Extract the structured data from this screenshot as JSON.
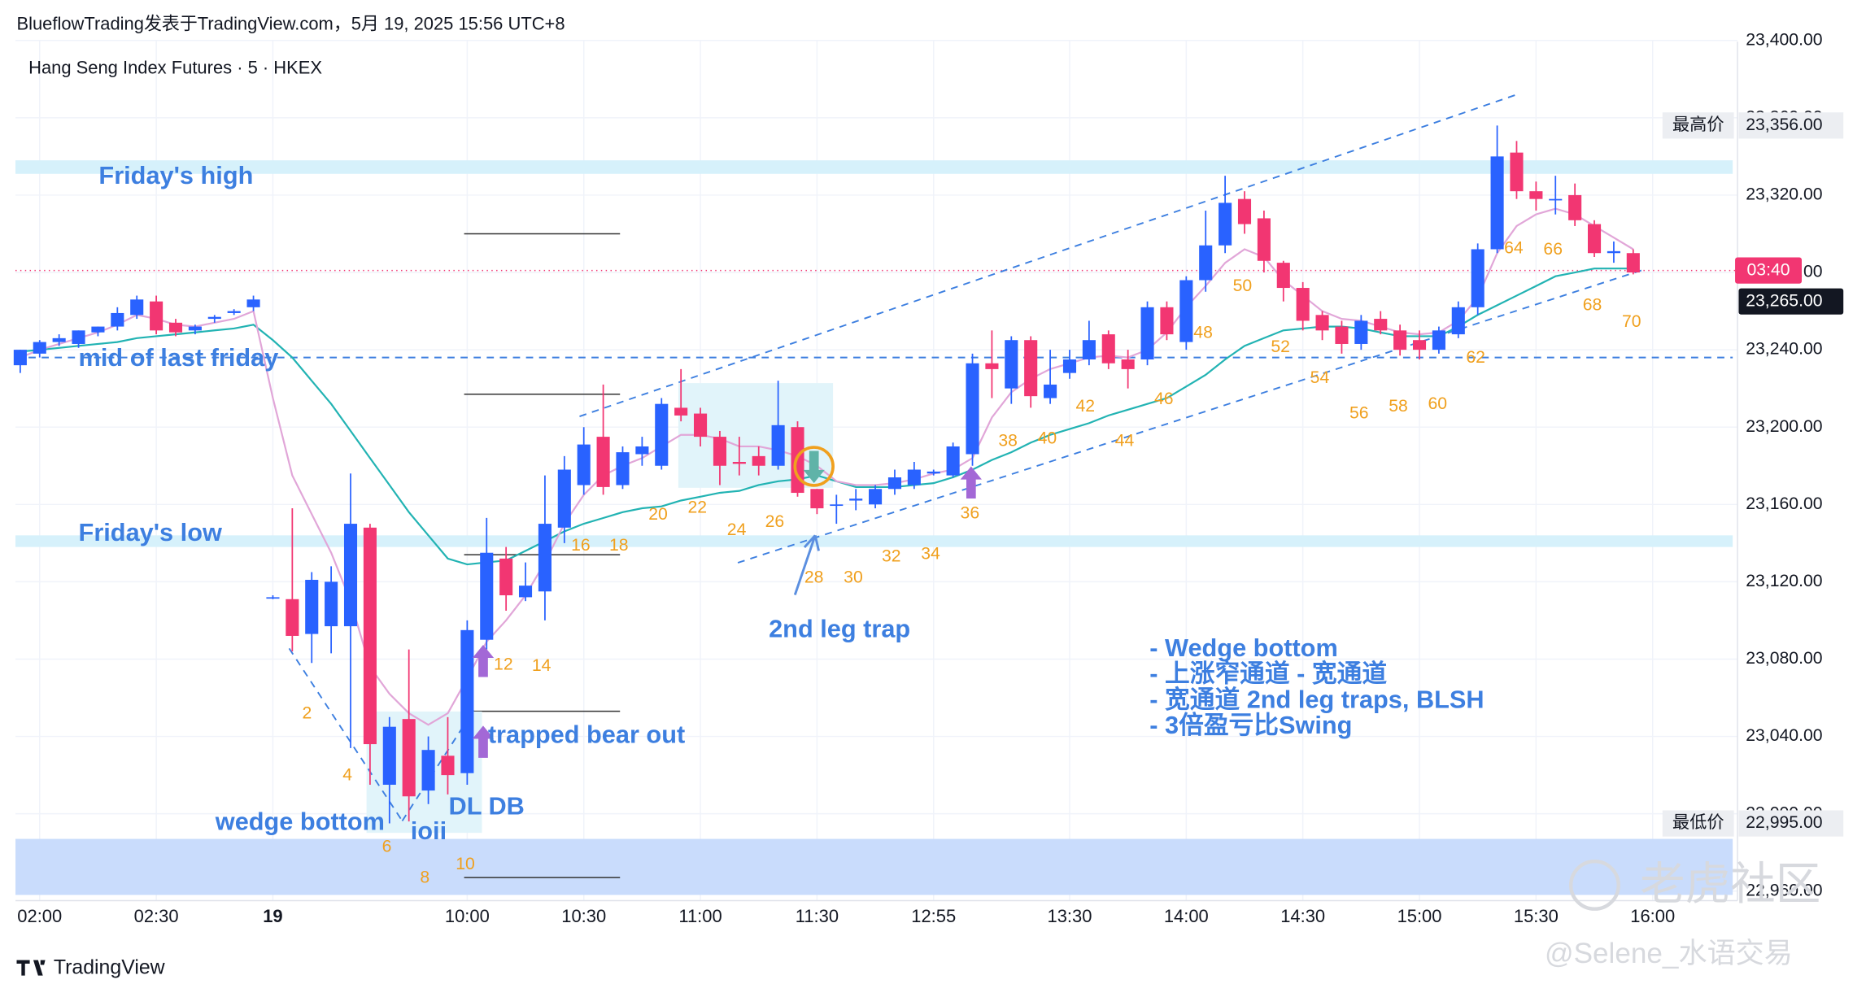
{
  "header": "BlueflowTrading发表于TradingView.com，5月 19, 2025 15:56 UTC+8",
  "footer": {
    "brand": "TradingView",
    "watermark": "老虎社区",
    "author": "@Selene_水语交易"
  },
  "chart_data": {
    "type": "candlestick",
    "title": "Hang Seng Index Futures · 5 · HKEX",
    "categories": [
      null,
      "02:00",
      null,
      null,
      null,
      null,
      null,
      "02:30",
      null,
      null,
      null,
      null,
      null,
      "19",
      null,
      null,
      null,
      null,
      null,
      null,
      null,
      null,
      null,
      "10:00",
      null,
      null,
      null,
      null,
      null,
      "10:30",
      null,
      null,
      null,
      null,
      null,
      "11:00",
      null,
      null,
      null,
      null,
      null,
      "11:30",
      null,
      null,
      null,
      null,
      null,
      "12:55",
      null,
      null,
      null,
      null,
      null,
      null,
      "13:30",
      null,
      null,
      null,
      null,
      null,
      "14:00",
      null,
      null,
      null,
      null,
      null,
      "14:30",
      null,
      null,
      null,
      null,
      null,
      "15:00",
      null,
      null,
      null,
      null,
      null,
      "15:30",
      null,
      null,
      null,
      null,
      null,
      "16:00"
    ],
    "ohlc": {
      "open": [
        23232,
        23238,
        23244,
        23243,
        23249,
        23252,
        23258,
        23265,
        23254,
        23250,
        23256,
        23259,
        23262,
        23112,
        23111,
        23093,
        23097,
        23097,
        23148,
        23015,
        23049,
        23012,
        23030,
        23021,
        23090,
        23132,
        23112,
        23115,
        23148,
        23170,
        23195,
        23170,
        23186,
        23180,
        23210,
        23207,
        23195,
        23182,
        23185,
        23180,
        23200,
        23168,
        23160,
        23162,
        23160,
        23168,
        23170,
        23176,
        23175,
        23186,
        23233,
        23220,
        23245,
        23215,
        23228,
        23235,
        23248,
        23235,
        23235,
        23262,
        23244,
        23276,
        23294,
        23318,
        23308,
        23285,
        23272,
        23258,
        23252,
        23243,
        23256,
        23250,
        23245,
        23240,
        23248,
        23262,
        23292,
        23342,
        23322,
        23318,
        23320,
        23305,
        23290,
        23290,
        null
      ],
      "high": [
        23240,
        23245,
        23248,
        23250,
        23252,
        23262,
        23268,
        23268,
        23256,
        23253,
        23258,
        23261,
        23268,
        23113,
        23158,
        23125,
        23128,
        23176,
        23150,
        23050,
        23085,
        23040,
        23050,
        23100,
        23153,
        23138,
        23130,
        23175,
        23185,
        23200,
        23222,
        23190,
        23195,
        23215,
        23230,
        23210,
        23198,
        23195,
        23190,
        23224,
        23203,
        23168,
        23165,
        23168,
        23170,
        23178,
        23182,
        23178,
        23192,
        23238,
        23250,
        23247,
        23247,
        23240,
        23240,
        23255,
        23250,
        23240,
        23265,
        23265,
        23278,
        23312,
        23330,
        23322,
        23312,
        23286,
        23275,
        23260,
        23255,
        23258,
        23260,
        23253,
        23250,
        23252,
        23265,
        23295,
        23356,
        23348,
        23327,
        23330,
        23326,
        23307,
        23296,
        23292,
        null
      ],
      "low": [
        23228,
        23236,
        23242,
        23241,
        23247,
        23250,
        23256,
        23248,
        23247,
        23248,
        23254,
        23258,
        23260,
        23111,
        23084,
        23078,
        23083,
        23034,
        23015,
        22995,
        22996,
        23005,
        23010,
        23015,
        23085,
        23105,
        23110,
        23100,
        23140,
        23165,
        23165,
        23168,
        23180,
        23178,
        23203,
        23190,
        23170,
        23175,
        23175,
        23178,
        23164,
        23155,
        23150,
        23157,
        23158,
        23165,
        23168,
        23175,
        23174,
        23180,
        23215,
        23212,
        23210,
        23212,
        23225,
        23232,
        23230,
        23220,
        23232,
        23245,
        23240,
        23270,
        23290,
        23300,
        23280,
        23265,
        23250,
        23245,
        23238,
        23240,
        23248,
        23237,
        23235,
        23238,
        23246,
        23258,
        23290,
        23318,
        23312,
        23310,
        23304,
        23288,
        23285,
        23279,
        null
      ],
      "close": [
        23240,
        23244,
        23246,
        23250,
        23252,
        23259,
        23266,
        23250,
        23249,
        23252,
        23257,
        23260,
        23266,
        23112,
        23092,
        23121,
        23120,
        23150,
        23036,
        23045,
        23009,
        23033,
        23020,
        23095,
        23135,
        23113,
        23118,
        23150,
        23178,
        23191,
        23169,
        23187,
        23190,
        23212,
        23206,
        23195,
        23180,
        23181,
        23180,
        23201,
        23166,
        23158,
        23160,
        23163,
        23168,
        23174,
        23178,
        23177,
        23190,
        23233,
        23230,
        23245,
        23216,
        23222,
        23235,
        23245,
        23233,
        23230,
        23262,
        23248,
        23276,
        23294,
        23316,
        23305,
        23286,
        23272,
        23255,
        23250,
        23243,
        23255,
        23250,
        23240,
        23240,
        23250,
        23262,
        23292,
        23340,
        23322,
        23318,
        23318,
        23307,
        23290,
        23291,
        23280,
        null
      ]
    },
    "up_color": "#2962ff",
    "down_color": "#f23672",
    "indicators": [
      {
        "color": "#22b3b3",
        "values": [
          23239,
          23240,
          23241,
          23242,
          23243,
          23244,
          23246,
          23247,
          23248,
          23249,
          23250,
          23251,
          23253,
          23245,
          23236,
          23224,
          23212,
          23198,
          23184,
          23170,
          23156,
          23144,
          23132,
          23129,
          23130,
          23131,
          23136,
          23141,
          23146,
          23150,
          23153,
          23156,
          23158,
          23159,
          23162,
          23164,
          23166,
          23167,
          23170,
          23172,
          23173,
          23175,
          23172,
          23169,
          23169,
          23169,
          23170,
          23171,
          23174,
          23178,
          23183,
          23187,
          23192,
          23196,
          23199,
          23202,
          23206,
          23209,
          23212,
          23215,
          23221,
          23227,
          23235,
          23242,
          23246,
          23250,
          23251,
          23252,
          23252,
          23251,
          23249,
          23247,
          23247,
          23247,
          23252,
          23258,
          23263,
          23268,
          23273,
          23278,
          23280,
          23282,
          23282,
          23282,
          null
        ]
      },
      {
        "color": "#e1a6d8",
        "values": [
          23236,
          23240,
          23243,
          23246,
          23249,
          23253,
          23258,
          23256,
          23253,
          23252,
          23254,
          23256,
          23260,
          23215,
          23175,
          23155,
          23135,
          23110,
          23076,
          23062,
          23052,
          23046,
          23052,
          23070,
          23089,
          23100,
          23113,
          23130,
          23150,
          23165,
          23175,
          23180,
          23184,
          23190,
          23196,
          23196,
          23194,
          23190,
          23190,
          23188,
          23185,
          23180,
          23172,
          23170,
          23170,
          23171,
          23173,
          23176,
          23178,
          23184,
          23205,
          23218,
          23225,
          23230,
          23233,
          23236,
          23237,
          23236,
          23240,
          23249,
          23262,
          23273,
          23285,
          23292,
          23288,
          23276,
          23268,
          23260,
          23256,
          23255,
          23252,
          23249,
          23248,
          23249,
          23255,
          23267,
          23290,
          23304,
          23310,
          23313,
          23310,
          23304,
          23298,
          23292,
          null
        ]
      }
    ],
    "ylim": [
      22955,
      23400
    ],
    "yticks": [
      {
        "value": 22960,
        "label": "22,960.00"
      },
      {
        "value": 23000,
        "label": "23,000.00"
      },
      {
        "value": 23040,
        "label": "23,040.00"
      },
      {
        "value": 23080,
        "label": "23,080.00"
      },
      {
        "value": 23120,
        "label": "23,120.00"
      },
      {
        "value": 23160,
        "label": "23,160.00"
      },
      {
        "value": 23200,
        "label": "23,200.00"
      },
      {
        "value": 23240,
        "label": "23,240.00"
      },
      {
        "value": 23280,
        "label": "23,280.00"
      },
      {
        "value": 23320,
        "label": "23,320.00"
      },
      {
        "value": 23360,
        "label": "23,360.00"
      },
      {
        "value": 23400,
        "label": "23,400.00"
      }
    ],
    "grid": true,
    "zones": [
      {
        "label": "Friday's high",
        "low": 23331,
        "high": 23338,
        "color": "#d6f1fb"
      },
      {
        "label": "Friday's low",
        "low": 23138,
        "high": 23144,
        "color": "#d6f1fb"
      },
      {
        "low": 22958,
        "high": 22987,
        "color": "#c9dcfc"
      }
    ],
    "mid_line": {
      "label": "mid of last friday",
      "value": 23236
    },
    "levels": [
      23300,
      23217,
      23134,
      23053,
      22967
    ],
    "last_price": 23281,
    "countdown": "03:40",
    "price_tags": [
      {
        "caption": "最高价",
        "value": 23356,
        "label": "23,356.00"
      },
      {
        "caption": "最低价",
        "value": 22995,
        "label": "22,995.00"
      },
      {
        "value": 23265,
        "label": "23,265.00"
      }
    ],
    "bar_counts": [
      2,
      4,
      6,
      8,
      10,
      12,
      14,
      16,
      18,
      20,
      22,
      24,
      26,
      28,
      30,
      32,
      34,
      36,
      38,
      40,
      42,
      44,
      46,
      48,
      50,
      52,
      54,
      56,
      58,
      60,
      62,
      64,
      66,
      68,
      70
    ],
    "annotations": [
      "wedge bottom",
      "ioii",
      "DL DB",
      "trapped bear out",
      "2nd leg trap"
    ],
    "notes": [
      "- Wedge bottom",
      "- 上涨窄通道 - 宽通道",
      "- 宽通道 2nd leg traps, BLSH",
      "- 3倍盈亏比Swing"
    ]
  }
}
